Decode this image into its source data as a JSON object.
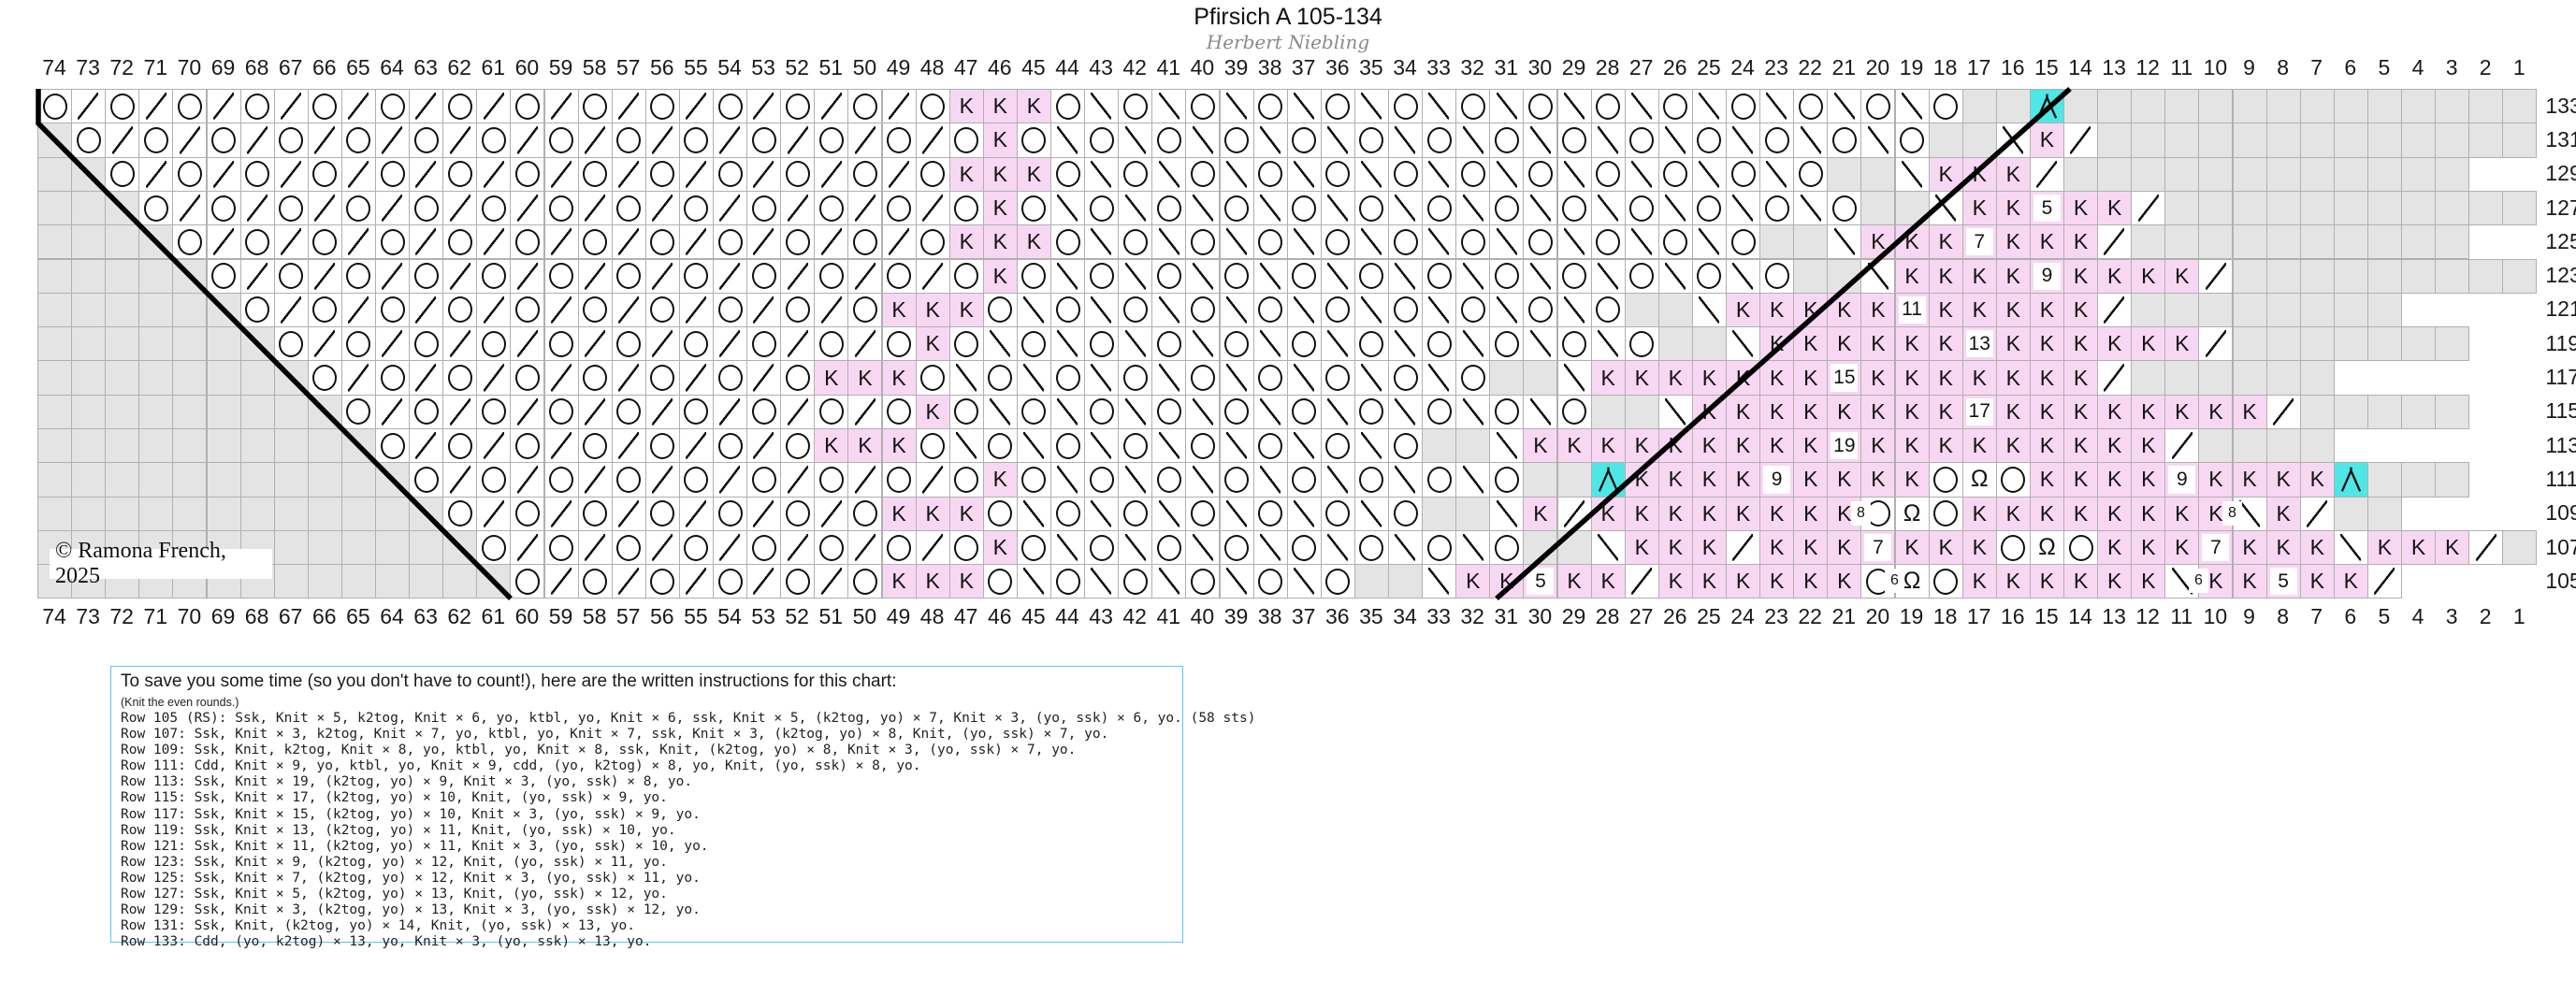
{
  "title": "Pfirsich A 105-134",
  "subtitle": "Herbert Niebling",
  "copyright": "© Ramona French, 2025",
  "colors": {
    "leaf_pink": "#f8d7f3",
    "cdd_cyan": "#4fe6e6",
    "no_stitch_gray": "#e4e4e4",
    "gridline": "#b0b0b0",
    "instruction_border_blue": "#5ac8e8"
  },
  "chart": {
    "column_numbers": [
      74,
      73,
      72,
      71,
      70,
      69,
      68,
      67,
      66,
      65,
      64,
      63,
      62,
      61,
      60,
      59,
      58,
      57,
      56,
      55,
      54,
      53,
      52,
      51,
      50,
      49,
      48,
      47,
      46,
      45,
      44,
      43,
      42,
      41,
      40,
      39,
      38,
      37,
      36,
      35,
      34,
      33,
      32,
      31,
      30,
      29,
      28,
      27,
      26,
      25,
      24,
      23,
      22,
      21,
      20,
      19,
      18,
      17,
      16,
      15,
      14,
      13,
      12,
      11,
      10,
      9,
      8,
      7,
      6,
      5,
      4,
      3,
      2,
      1
    ],
    "row_numbers": [
      133,
      131,
      129,
      127,
      125,
      123,
      121,
      119,
      117,
      115,
      113,
      111,
      109,
      107,
      105
    ],
    "symbol_legend": {
      ".": "no-stitch",
      "O": "yarn-over",
      "/": "k2tog",
      "B": "ssk",
      "K": "knit",
      "Q": "ktbl",
      "A": "cdd",
      "numbers": "knit-count"
    },
    "rows": {
      "133": "O B O B O B O B O B O B O B O B O B O B O B O B O B O K K K O / O / O / O / O / O / O / O / O / O / O / O / O / O . . A . . . . . . . . . . . . . .",
      "131": ". O B O B O B O B O B O B O B O B O B O B O B O B O B O K O / O / O / O / O / O / O / O / O / O / O / O / O / O . . / K B . . . . . . . . . . . . .",
      "129": ". . O B O B O B O B O B O B O B O B O B O B O B O B O K K K O / O / O / O / O / O / O / O / O / O / O / O . . / K K K B . . . . . . . . . . . .",
      "127": ". . . O B O B O B O B O B O B O B O B O B O B O B O B O K O / O / O / O / O / O / O / O / O / O / O / O / O . . / K K 5 K K B . . . . . . . . . . .",
      "125": ". . . . O B O B O B O B O B O B O B O B O B O B O B O K K K O / O / O / O / O / O / O / O / O / O / O . . / K K K 7 K K K B . . . . . . . . . .",
      "123": ". . . . . O B O B O B O B O B O B O B O B O B O B O B O K O / O / O / O / O / O / O / O / O / O / O / O . . / K K K K 9 K K K K B . . . . . . . . .",
      "121": ". . . . . . O B O B O B O B O B O B O B O B O B O K K K O / O / O / O / O / O / O / O / O / O . . / K K K K K 11 K K K K K B . . . . . . . .",
      "119": ". . . . . . . O B O B O B O B O B O B O B O B O B O K O / O / O / O / O / O / O / O / O / O / O . . / K K K K K K 13 K K K K K K B . . . . . . .",
      "117": ". . . . . . . . O B O B O B O B O B O B O B O K K K O / O / O / O / O / O / O / O / O . . / K K K K K K K 15 K K K K K K K B . . . . . .",
      "115": ". . . . . . . . . O B O B O B O B O B O B O B O B O K O / O / O / O / O / O / O / O / O / O . . / K K K K K K K K 17 K K K K K K K K B . . . . .",
      "113": ". . . . . . . . . . O B O B O B O B O B O B O K K K O / O / O / O / O / O / O / O . . / K K K K K K K K K 19 K K K K K K K K K B . . . .",
      "111": ". . . . . . . . . . . O B O B O B O B O B O B O B O B O K O / O / O / O / O / O / O / O . . A K K K K 9 K K K K O Q O K K K K 9 K K K K A . . .",
      "109": ". . . . . . . . . . . . O B O B O B O B O B O B O K K K O / O / O / O / O / O / O . . / K B K K K K K K K K O Q O K K K K K K K K / K B . .",
      "107": ". . . . . . . . . . . . . O B O B O B O B O B O B O B O K O / O / O / O / O / O / O / O . . / K K K B K K K 7 K K K O Q O K K K 7 K K K / K K K B .",
      "105": ". . . . . . . . . . . . . . O B O B O B O B O B O K K K O / O / O / O / O / O . . / K K 5 K K B K K K K K K O Q O K K K K K K / K K 5 K K B"
    },
    "small_counts": [
      {
        "row": 105,
        "boundary_col": 10,
        "value": "6"
      },
      {
        "row": 105,
        "boundary_col": 19,
        "value": "6"
      },
      {
        "row": 109,
        "boundary_col": 9,
        "value": "8"
      },
      {
        "row": 109,
        "boundary_col": 20,
        "value": "8"
      }
    ]
  },
  "instructions": {
    "intro": "To save you some time (so you don't have to count!), here are the written instructions for this chart:",
    "note": "(Knit the even rounds.)",
    "rows": [
      "Row 105 (RS): Ssk, Knit × 5, k2tog, Knit × 6, yo, ktbl, yo, Knit × 6, ssk, Knit × 5, (k2tog, yo) × 7, Knit × 3, (yo, ssk) × 6, yo. (58 sts)",
      "Row 107: Ssk, Knit × 3, k2tog, Knit × 7, yo, ktbl, yo, Knit × 7, ssk, Knit × 3, (k2tog, yo) × 8, Knit, (yo, ssk) × 7, yo.",
      "Row 109: Ssk, Knit, k2tog, Knit × 8, yo, ktbl, yo, Knit × 8, ssk, Knit, (k2tog, yo) × 8, Knit × 3, (yo, ssk) × 7, yo.",
      "Row 111: Cdd, Knit × 9, yo, ktbl, yo, Knit × 9, cdd, (yo, k2tog) × 8, yo, Knit, (yo, ssk) × 8, yo.",
      "Row 113: Ssk, Knit × 19, (k2tog, yo) × 9, Knit × 3, (yo, ssk) × 8, yo.",
      "Row 115: Ssk, Knit × 17, (k2tog, yo) × 10, Knit, (yo, ssk) × 9, yo.",
      "Row 117: Ssk, Knit × 15, (k2tog, yo) × 10, Knit × 3, (yo, ssk) × 9, yo.",
      "Row 119: Ssk, Knit × 13, (k2tog, yo) × 11, Knit, (yo, ssk) × 10, yo.",
      "Row 121: Ssk, Knit × 11, (k2tog, yo) × 11, Knit × 3, (yo, ssk) × 10, yo.",
      "Row 123: Ssk, Knit × 9, (k2tog, yo) × 12, Knit, (yo, ssk) × 11, yo.",
      "Row 125: Ssk, Knit × 7, (k2tog, yo) × 12, Knit × 3, (yo, ssk) × 11, yo.",
      "Row 127: Ssk, Knit × 5, (k2tog, yo) × 13, Knit, (yo, ssk) × 12, yo.",
      "Row 129: Ssk, Knit × 3, (k2tog, yo) × 13, Knit × 3, (yo, ssk) × 12, yo.",
      "Row 131: Ssk, Knit, (k2tog, yo) × 14, Knit, (yo, ssk) × 13, yo.",
      "Row 133: Cdd, (yo, k2tog) × 13, yo, Knit × 3, (yo, ssk) × 13, yo."
    ]
  }
}
